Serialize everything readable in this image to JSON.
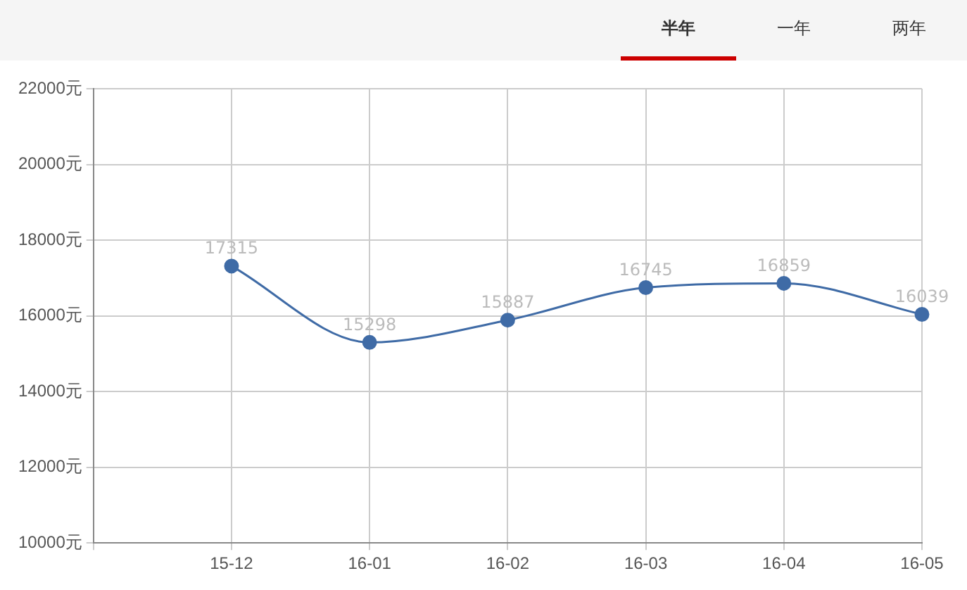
{
  "chart_data": {
    "type": "line",
    "categories": [
      null,
      "15-12",
      "16-01",
      "16-02",
      "16-03",
      "16-04",
      "16-05"
    ],
    "series": [
      {
        "color": "#3f6ba6",
        "values": [
          null,
          17315,
          15298,
          15887,
          16745,
          16859,
          16039
        ]
      }
    ],
    "ylim": [
      10000,
      22000
    ],
    "yticks": [
      {
        "value": 10000,
        "label": "10000元"
      },
      {
        "value": 12000,
        "label": "12000元"
      },
      {
        "value": 14000,
        "label": "14000元"
      },
      {
        "value": 16000,
        "label": "16000元"
      },
      {
        "value": 18000,
        "label": "18000元"
      },
      {
        "value": 20000,
        "label": "20000元"
      },
      {
        "value": 22000,
        "label": "22000元"
      }
    ],
    "grid": true,
    "legend": false,
    "marker": "circle",
    "line_style": "solid",
    "data_labels": true,
    "annotations": [
      "半年",
      "一年",
      "两年"
    ]
  }
}
